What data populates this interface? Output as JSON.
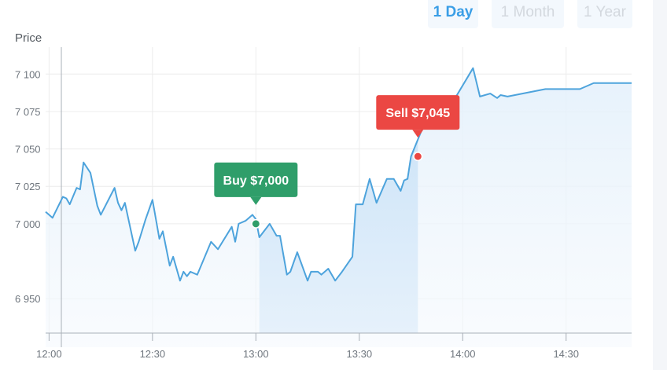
{
  "range_tabs": [
    {
      "label": "1 Day",
      "active": true
    },
    {
      "label": "1 Month",
      "active": false
    },
    {
      "label": "1 Year",
      "active": false
    }
  ],
  "colors": {
    "line": "#4da3dc",
    "area": "#eaf4fc",
    "area_highlight": "#d6e9f9",
    "buy": "#2f9e6a",
    "sell": "#eb4743",
    "grid": "#ececec",
    "axis": "#a9b0b8"
  },
  "chart_data": {
    "type": "area",
    "ylabel": "Price",
    "xlabel": "",
    "title": "",
    "ylim": [
      6927,
      7118
    ],
    "xlim": [
      "11:59",
      "14:49"
    ],
    "x_ticks": [
      "12:00",
      "12:30",
      "13:00",
      "13:30",
      "14:00",
      "14:30"
    ],
    "y_ticks": [
      7100,
      7075,
      7050,
      7025,
      7000,
      6950
    ],
    "y_tick_labels": [
      "7 100",
      "7 075",
      "7 050",
      "7 025",
      "7 000",
      "6 950"
    ],
    "grid": true,
    "series": [
      {
        "values": [
          [
            "11:59",
            7008
          ],
          [
            "12:01",
            7004
          ],
          [
            "12:04",
            7018
          ],
          [
            "12:05",
            7017
          ],
          [
            "12:06",
            7013
          ],
          [
            "12:08",
            7024
          ],
          [
            "12:09",
            7023
          ],
          [
            "12:10",
            7041
          ],
          [
            "12:12",
            7034
          ],
          [
            "12:14",
            7012
          ],
          [
            "12:15",
            7006
          ],
          [
            "12:19",
            7024
          ],
          [
            "12:20",
            7014
          ],
          [
            "12:21",
            7009
          ],
          [
            "12:22",
            7014
          ],
          [
            "12:25",
            6982
          ],
          [
            "12:26",
            6988
          ],
          [
            "12:28",
            7003
          ],
          [
            "12:30",
            7016
          ],
          [
            "12:32",
            6990
          ],
          [
            "12:33",
            6995
          ],
          [
            "12:35",
            6972
          ],
          [
            "12:36",
            6978
          ],
          [
            "12:38",
            6962
          ],
          [
            "12:39",
            6968
          ],
          [
            "12:40",
            6965
          ],
          [
            "12:41",
            6968
          ],
          [
            "12:43",
            6966
          ],
          [
            "12:47",
            6988
          ],
          [
            "12:49",
            6983
          ],
          [
            "12:53",
            6998
          ],
          [
            "12:54",
            6988
          ],
          [
            "12:55",
            7000
          ],
          [
            "12:57",
            7002
          ],
          [
            "12:59",
            7006
          ],
          [
            "13:00",
            7003
          ],
          [
            "13:01",
            6991
          ],
          [
            "13:04",
            7000
          ],
          [
            "13:06",
            6992
          ],
          [
            "13:07",
            6992
          ],
          [
            "13:09",
            6966
          ],
          [
            "13:10",
            6968
          ],
          [
            "13:12",
            6981
          ],
          [
            "13:15",
            6962
          ],
          [
            "13:16",
            6968
          ],
          [
            "13:18",
            6968
          ],
          [
            "13:19",
            6966
          ],
          [
            "13:21",
            6970
          ],
          [
            "13:23",
            6962
          ],
          [
            "13:25",
            6968
          ],
          [
            "13:28",
            6978
          ],
          [
            "13:29",
            7013
          ],
          [
            "13:31",
            7013
          ],
          [
            "13:33",
            7030
          ],
          [
            "13:35",
            7014
          ],
          [
            "13:38",
            7030
          ],
          [
            "13:40",
            7030
          ],
          [
            "13:42",
            7022
          ],
          [
            "13:43",
            7029
          ],
          [
            "13:44",
            7030
          ],
          [
            "13:45",
            7045
          ],
          [
            "13:48",
            7062
          ],
          [
            "13:50",
            7075
          ],
          [
            "13:52",
            7079
          ],
          [
            "13:54",
            7077
          ],
          [
            "13:56",
            7077
          ],
          [
            "14:03",
            7104
          ],
          [
            "14:05",
            7085
          ],
          [
            "14:08",
            7087
          ],
          [
            "14:10",
            7084
          ],
          [
            "14:11",
            7086
          ],
          [
            "14:13",
            7085
          ],
          [
            "14:24",
            7090
          ],
          [
            "14:34",
            7090
          ],
          [
            "14:38",
            7094
          ],
          [
            "14:49",
            7094
          ]
        ]
      }
    ],
    "highlight_range": [
      "13:01",
      "13:47"
    ],
    "annotations": [
      {
        "label": "Buy $7,000",
        "kind": "buy",
        "x": "13:00",
        "y": 7000
      },
      {
        "label": "Sell $7,045",
        "kind": "sell",
        "x": "13:47",
        "y": 7045
      }
    ]
  }
}
